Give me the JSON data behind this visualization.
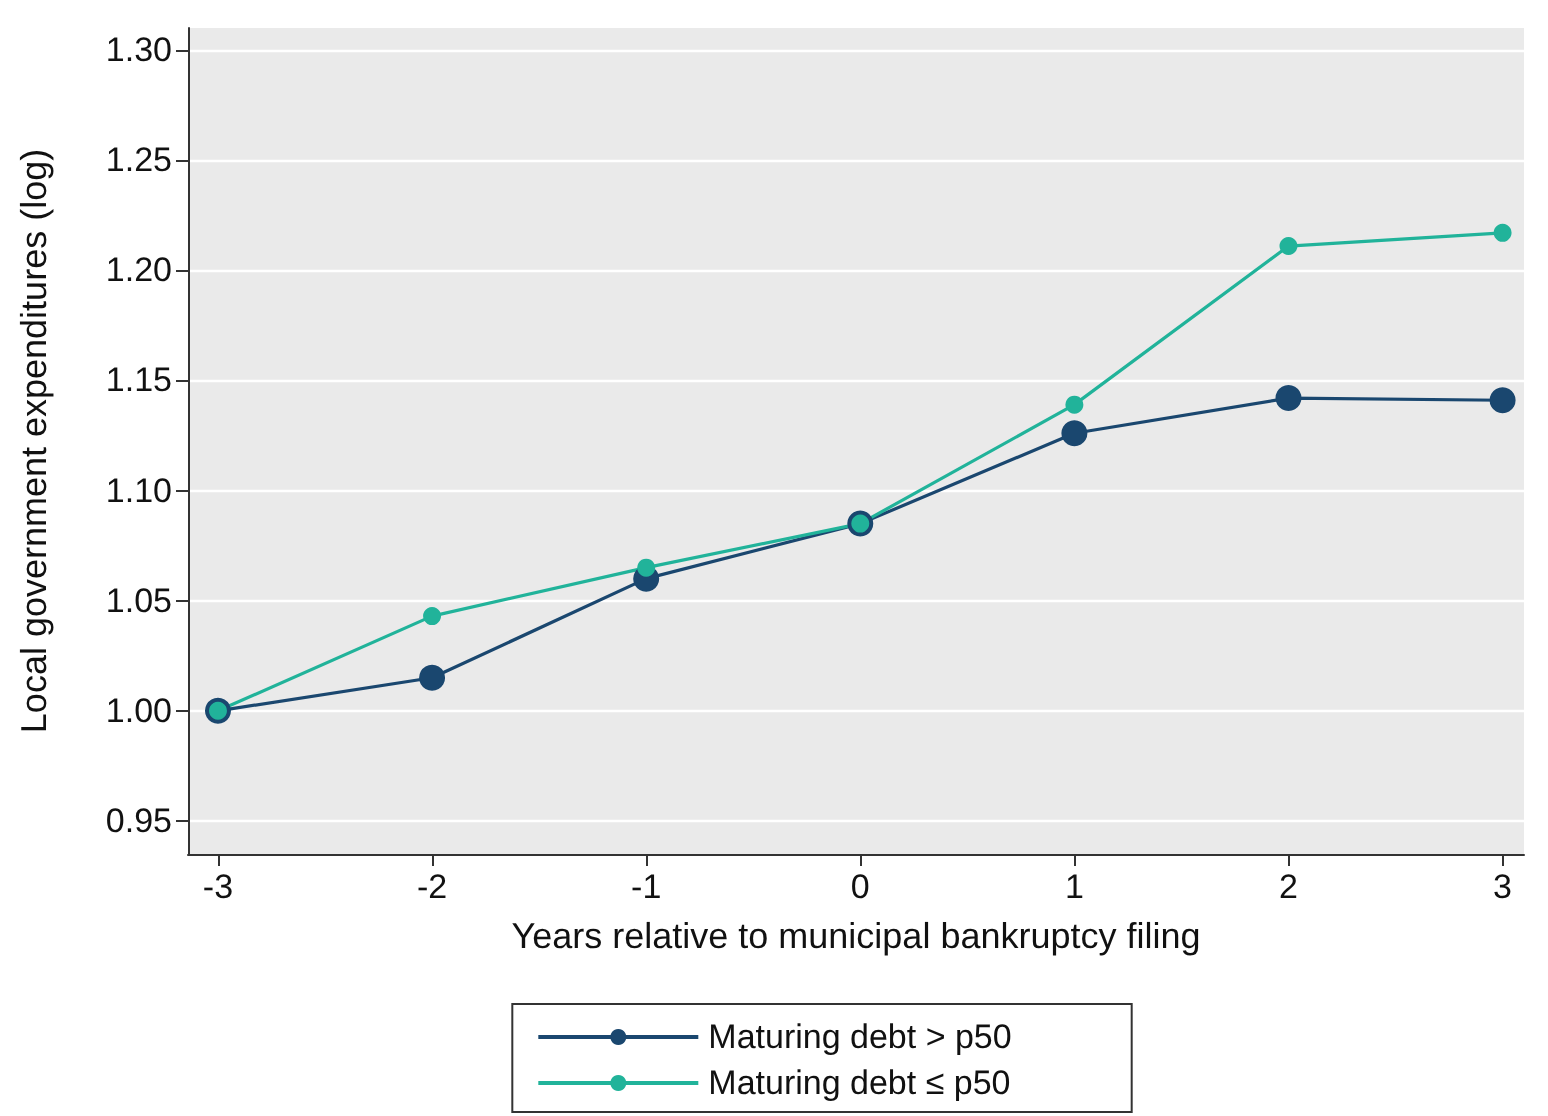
{
  "chart_data": {
    "type": "line",
    "xlabel": "Years relative to municipal bankruptcy filing",
    "ylabel": "Local government expenditures (log)",
    "x": [
      -3,
      -2,
      -1,
      0,
      1,
      2,
      3
    ],
    "series": [
      {
        "name": "Maturing debt > p50",
        "color": "#1a476f",
        "values": [
          1.0,
          1.015,
          1.06,
          1.085,
          1.126,
          1.142,
          1.141
        ]
      },
      {
        "name": "Maturing debt ≤ p50",
        "color": "#21b39a",
        "values": [
          1.0,
          1.043,
          1.065,
          1.085,
          1.139,
          1.211,
          1.217
        ]
      }
    ],
    "xlim": [
      -3.14,
      3.1
    ],
    "xticks": [
      -3,
      -2,
      -1,
      0,
      1,
      2,
      3
    ],
    "ylim": [
      0.935,
      1.31
    ],
    "yticks": [
      {
        "value": 0.95,
        "label": "0.95"
      },
      {
        "value": 1.0,
        "label": "1.00"
      },
      {
        "value": 1.05,
        "label": "1.05"
      },
      {
        "value": 1.1,
        "label": "1.10"
      },
      {
        "value": 1.15,
        "label": "1.15"
      },
      {
        "value": 1.2,
        "label": "1.20"
      },
      {
        "value": 1.25,
        "label": "1.25"
      },
      {
        "value": 1.3,
        "label": "1.30"
      }
    ],
    "grid": "y",
    "legend": "bottom",
    "marker": "circle",
    "line_style": "solid"
  }
}
